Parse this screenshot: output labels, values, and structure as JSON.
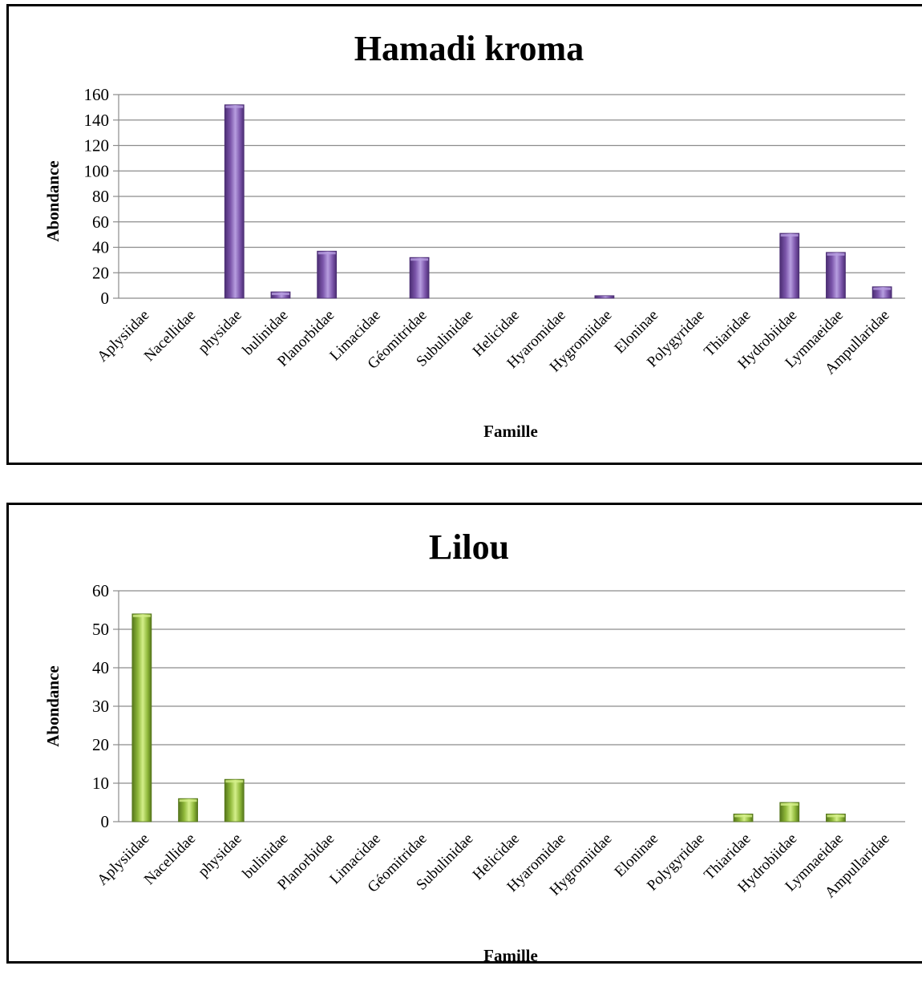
{
  "colors": {
    "series1": "#7b55aa",
    "series1_light": "#b79ee0",
    "series1_dark": "#4b2d73",
    "series2": "#8fb83a",
    "series2_light": "#d4ef8a",
    "series2_dark": "#55761b",
    "grid": "#8c8c8c"
  },
  "chart_data": [
    {
      "type": "bar",
      "title": "Hamadi kroma",
      "xlabel": "Famille",
      "ylabel": "Abondance",
      "ylim": [
        0,
        160
      ],
      "yticks": [
        "0",
        "20",
        "40",
        "60",
        "80",
        "100",
        "120",
        "140",
        "160"
      ],
      "grid": true,
      "color_key": "series1",
      "categories": [
        "Aplysiidae",
        "Nacellidae",
        "physidae",
        "bulinidae",
        "Planorbidae",
        "Limacidae",
        "Géomitridae",
        "Subulinidae",
        "Helicidae",
        "Hyaromidae",
        "Hygromiidae",
        "Eloninae",
        "Polygyridae",
        "Thiaridae",
        "Hydrobiidae",
        "Lymnaeidae",
        "Ampullaridae"
      ],
      "values": [
        0,
        0,
        152,
        5,
        37,
        0,
        32,
        0,
        0,
        0,
        2,
        0,
        0,
        0,
        51,
        36,
        9
      ]
    },
    {
      "type": "bar",
      "title": "Lilou",
      "xlabel": "Famille",
      "ylabel": "Abondance",
      "ylim": [
        0,
        60
      ],
      "yticks": [
        "0",
        "10",
        "20",
        "30",
        "40",
        "50",
        "60"
      ],
      "grid": true,
      "color_key": "series2",
      "categories": [
        "Aplysiidae",
        "Nacellidae",
        "physidae",
        "bulinidae",
        "Planorbidae",
        "Limacidae",
        "Géomitridae",
        "Subulinidae",
        "Helicidae",
        "Hyaromidae",
        "Hygromiidae",
        "Eloninae",
        "Polygyridae",
        "Thiaridae",
        "Hydrobiidae",
        "Lymnaeidae",
        "Ampullaridae"
      ],
      "values": [
        54,
        6,
        11,
        0,
        0,
        0,
        0,
        0,
        0,
        0,
        0,
        0,
        0,
        2,
        5,
        2,
        0
      ]
    }
  ]
}
